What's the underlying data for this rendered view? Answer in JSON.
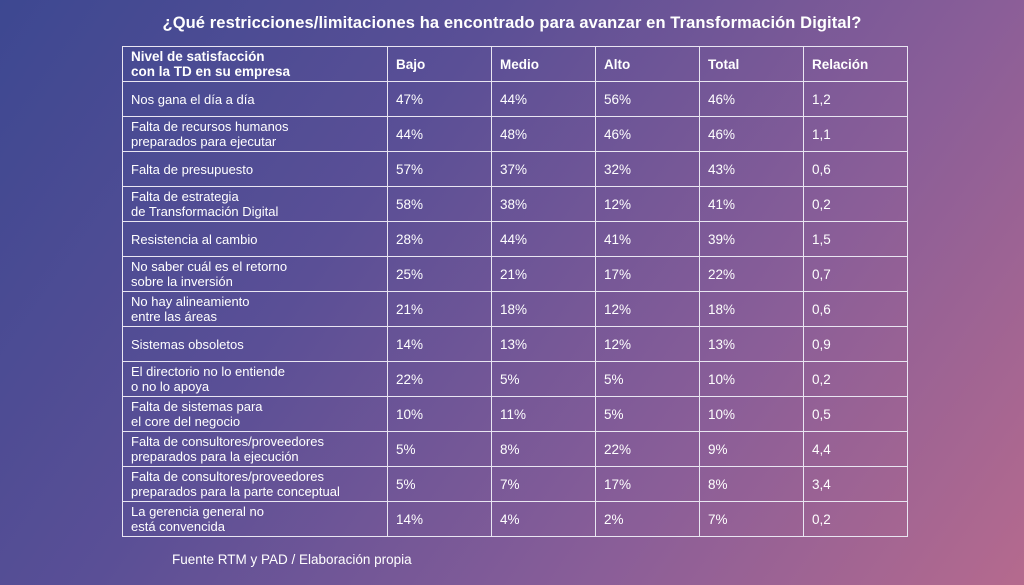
{
  "title": "¿Qué restricciones/limitaciones ha encontrado para avanzar en Transformación Digital?",
  "source": "Fuente RTM y PAD / Elaboración propia",
  "chart_data": {
    "type": "table",
    "title": "¿Qué restricciones/limitaciones ha encontrado para avanzar en Transformación Digital?",
    "header_label": [
      "Nivel de satisfacción",
      "con la TD en su empresa"
    ],
    "columns": [
      "Bajo",
      "Medio",
      "Alto",
      "Total",
      "Relación"
    ],
    "rows": [
      {
        "label": [
          "Nos gana el día a día"
        ],
        "values": [
          "47%",
          "44%",
          "56%",
          "46%",
          "1,2"
        ]
      },
      {
        "label": [
          "Falta de recursos humanos",
          "preparados para ejecutar"
        ],
        "values": [
          "44%",
          "48%",
          "46%",
          "46%",
          "1,1"
        ]
      },
      {
        "label": [
          "Falta de presupuesto"
        ],
        "values": [
          "57%",
          "37%",
          "32%",
          "43%",
          "0,6"
        ]
      },
      {
        "label": [
          "Falta de estrategia",
          "de Transformación Digital"
        ],
        "values": [
          "58%",
          "38%",
          "12%",
          "41%",
          "0,2"
        ]
      },
      {
        "label": [
          "Resistencia al cambio"
        ],
        "values": [
          "28%",
          "44%",
          "41%",
          "39%",
          "1,5"
        ]
      },
      {
        "label": [
          "No saber cuál es el retorno",
          "sobre la inversión"
        ],
        "values": [
          "25%",
          "21%",
          "17%",
          "22%",
          "0,7"
        ]
      },
      {
        "label": [
          "No hay alineamiento",
          "entre las áreas"
        ],
        "values": [
          "21%",
          "18%",
          "12%",
          "18%",
          "0,6"
        ]
      },
      {
        "label": [
          "Sistemas obsoletos"
        ],
        "values": [
          "14%",
          "13%",
          "12%",
          "13%",
          "0,9"
        ]
      },
      {
        "label": [
          "El directorio no lo entiende",
          "o no lo apoya"
        ],
        "values": [
          "22%",
          "5%",
          "5%",
          "10%",
          "0,2"
        ]
      },
      {
        "label": [
          "Falta de sistemas para",
          "el core del negocio"
        ],
        "values": [
          "10%",
          "11%",
          "5%",
          "10%",
          "0,5"
        ]
      },
      {
        "label": [
          "Falta de consultores/proveedores",
          "preparados para la ejecución"
        ],
        "values": [
          "5%",
          "8%",
          "22%",
          "9%",
          "4,4"
        ]
      },
      {
        "label": [
          "Falta de consultores/proveedores",
          "preparados para la parte conceptual"
        ],
        "values": [
          "5%",
          "7%",
          "17%",
          "8%",
          "3,4"
        ]
      },
      {
        "label": [
          "La gerencia general no",
          "está convencida"
        ],
        "values": [
          "14%",
          "4%",
          "2%",
          "7%",
          "0,2"
        ]
      }
    ]
  }
}
